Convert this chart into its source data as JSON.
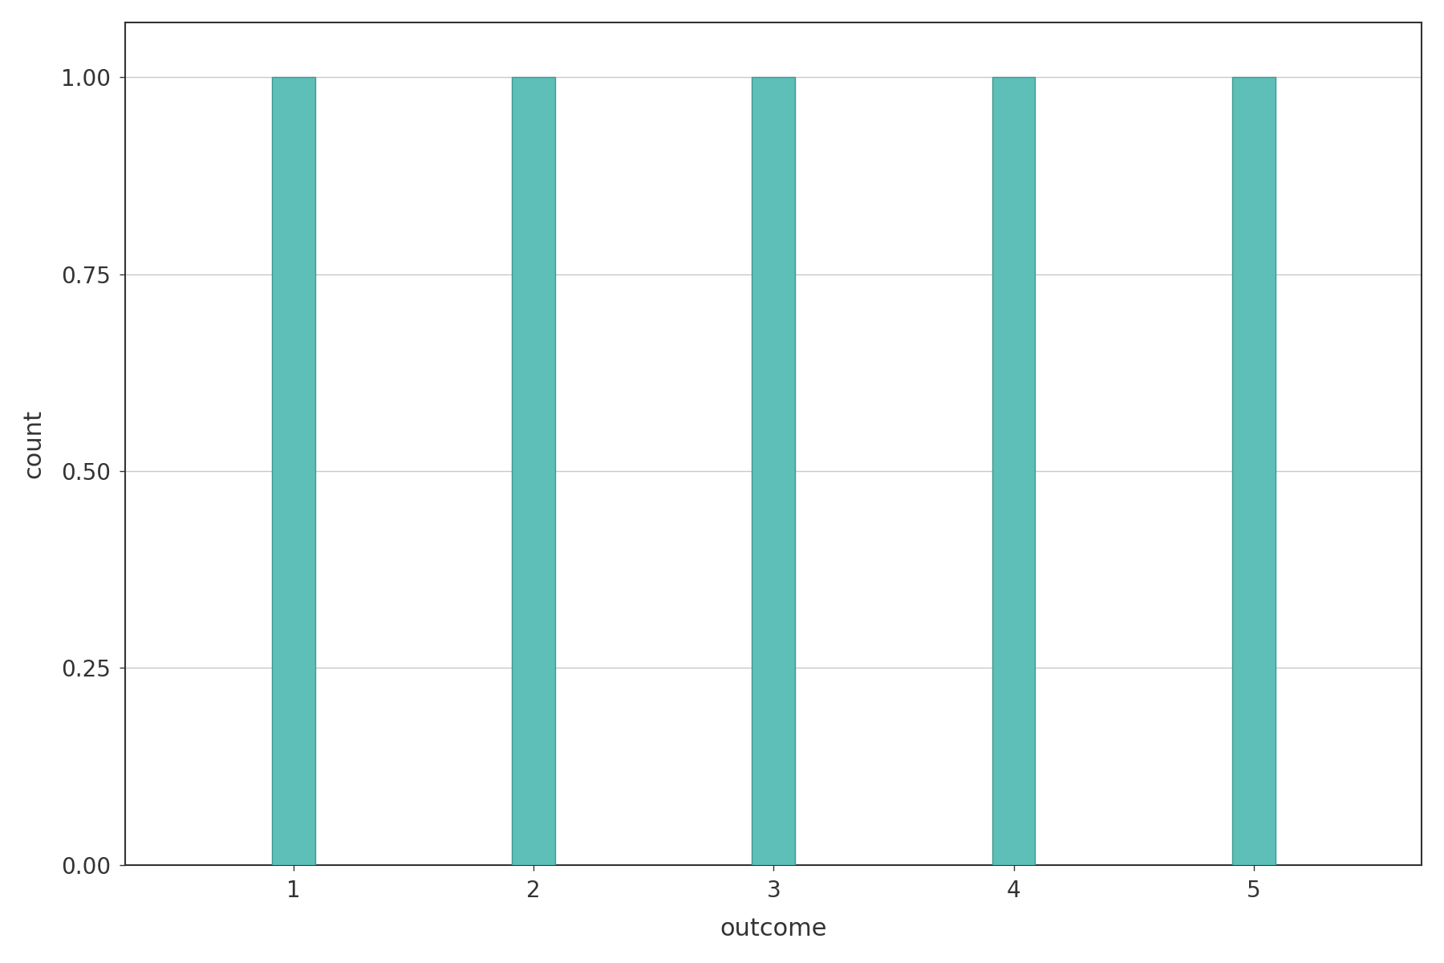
{
  "bar_positions": [
    1,
    2,
    3,
    4,
    5
  ],
  "bar_heights": [
    1,
    1,
    1,
    1,
    1
  ],
  "bar_color": "#5dbfb7",
  "bar_width": 0.18,
  "bar_edgecolor": "#3a9a92",
  "xlabel": "outcome",
  "ylabel": "count",
  "xlim": [
    0.3,
    5.7
  ],
  "ylim": [
    0,
    1.07
  ],
  "xticks": [
    1,
    2,
    3,
    4,
    5
  ],
  "xtick_labels": [
    "1",
    "2",
    "3",
    "4",
    "5"
  ],
  "yticks": [
    0.0,
    0.25,
    0.5,
    0.75,
    1.0
  ],
  "ytick_labels": [
    "0.00",
    "0.25",
    "0.50",
    "0.75",
    "1.00"
  ],
  "grid_color": "#c8c8c8",
  "grid_linewidth": 1.0,
  "background_color": "#ffffff",
  "spine_color": "#333333",
  "xlabel_fontsize": 22,
  "ylabel_fontsize": 22,
  "tick_fontsize": 20,
  "spine_linewidth": 1.5
}
